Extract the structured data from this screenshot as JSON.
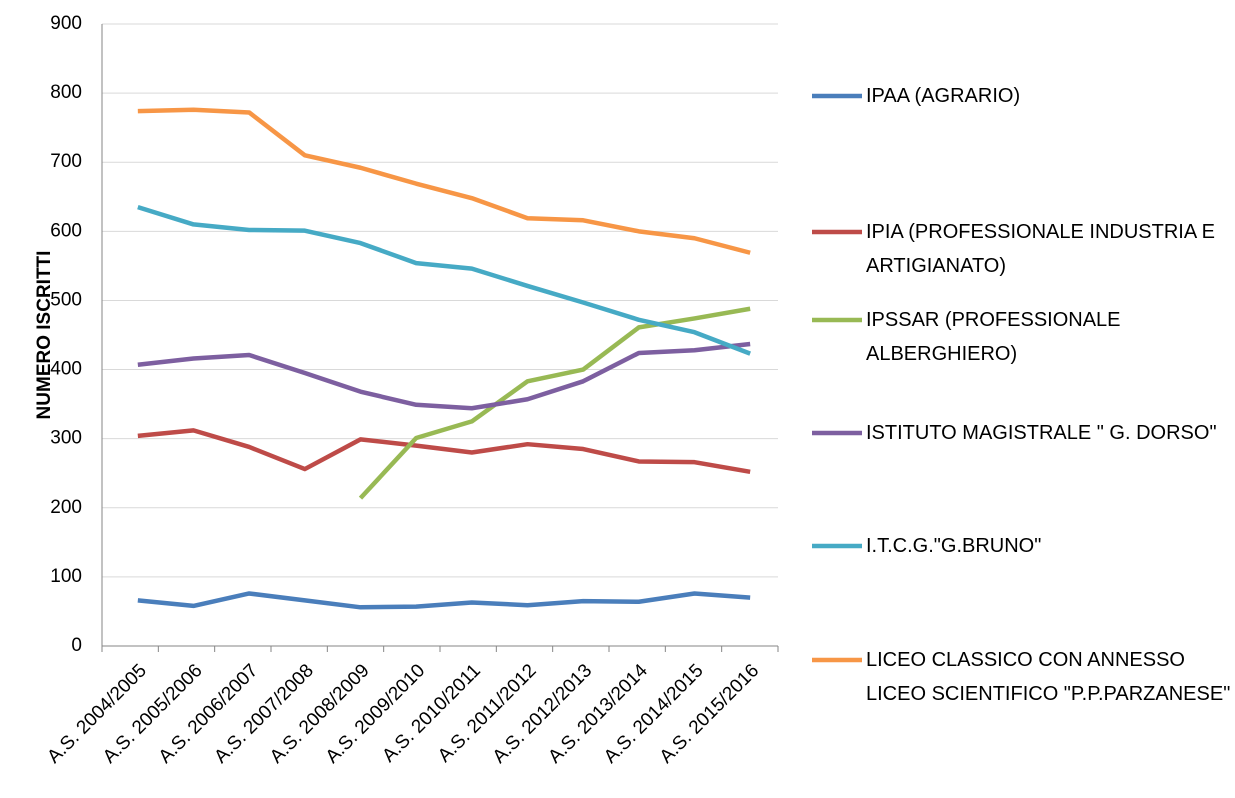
{
  "chart_data": {
    "type": "line",
    "y_label": "NUMERO ISCRITTI",
    "categories": [
      "A.S. 2004/2005",
      "A.S. 2005/2006",
      "A.S. 2006/2007",
      "A.S. 2007/2008",
      "A.S. 2008/2009",
      "A.S. 2009/2010",
      "A.S. 2010/2011",
      "A.S. 2011/2012",
      "A.S. 2012/2013",
      "A.S. 2013/2014",
      "A.S. 2014/2015",
      "A.S. 2015/2016"
    ],
    "series": [
      {
        "name": "IPAA (AGRARIO)",
        "color": "#4a7ebb",
        "values": [
          66,
          58,
          76,
          66,
          56,
          57,
          63,
          59,
          65,
          64,
          76,
          70
        ]
      },
      {
        "name": "IPIA (PROFESSIONALE INDUSTRIA E ARTIGIANATO)",
        "color": "#be4b48",
        "values": [
          304,
          312,
          288,
          256,
          299,
          290,
          280,
          292,
          285,
          267,
          266,
          252
        ]
      },
      {
        "name": "IPSSAR (PROFESSIONALE ALBERGHIERO)",
        "color": "#98b954",
        "values": [
          null,
          null,
          null,
          null,
          214,
          301,
          325,
          383,
          400,
          461,
          474,
          488
        ]
      },
      {
        "name": "ISTITUTO MAGISTRALE \" G. DORSO\"",
        "color": "#7d5fa0",
        "values": [
          407,
          416,
          421,
          395,
          368,
          349,
          344,
          357,
          383,
          424,
          428,
          437
        ]
      },
      {
        "name": "I.T.C.G.\"G.BRUNO\"",
        "color": "#46aac5",
        "values": [
          635,
          610,
          602,
          601,
          583,
          554,
          546,
          521,
          497,
          472,
          454,
          423
        ]
      },
      {
        "name": "LICEO CLASSICO CON ANNESSO LICEO SCIENTIFICO \"P.P.PARZANESE\"",
        "color": "#f79646",
        "values": [
          774,
          776,
          772,
          710,
          692,
          669,
          648,
          619,
          616,
          600,
          590,
          569
        ]
      }
    ],
    "ylim": [
      0,
      900
    ],
    "yticks": [
      0,
      100,
      200,
      300,
      400,
      500,
      600,
      700,
      800,
      900
    ],
    "grid": true,
    "legend": "right"
  }
}
